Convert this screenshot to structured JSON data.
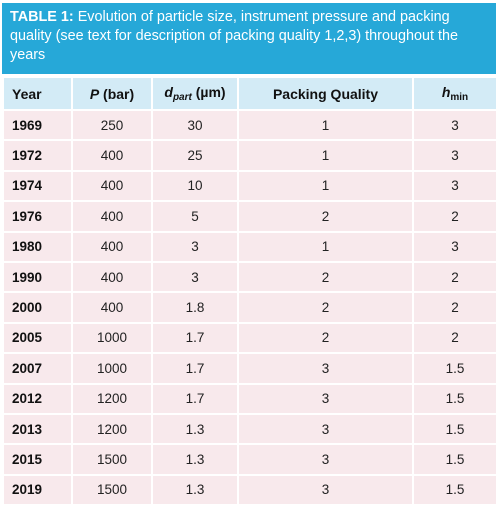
{
  "table": {
    "caption_lead": "TABLE 1:",
    "caption_text": "Evolution of particle size, instrument pressure and packing quality (see text for description of packing quality 1,2,3) throughout the years",
    "headers": {
      "year": "Year",
      "p_symbol": "P",
      "p_unit": "(bar)",
      "d_symbol": "d",
      "d_sub": "part",
      "d_unit": "(µm)",
      "packing": "Packing Quality",
      "h_symbol": "h",
      "h_sub": "min"
    },
    "rows": [
      [
        "1969",
        "250",
        "30",
        "1",
        "3"
      ],
      [
        "1972",
        "400",
        "25",
        "1",
        "3"
      ],
      [
        "1974",
        "400",
        "10",
        "1",
        "3"
      ],
      [
        "1976",
        "400",
        "5",
        "2",
        "2"
      ],
      [
        "1980",
        "400",
        "3",
        "1",
        "3"
      ],
      [
        "1990",
        "400",
        "3",
        "2",
        "2"
      ],
      [
        "2000",
        "400",
        "1.8",
        "2",
        "2"
      ],
      [
        "2005",
        "1000",
        "1.7",
        "2",
        "2"
      ],
      [
        "2007",
        "1000",
        "1.7",
        "3",
        "1.5"
      ],
      [
        "2012",
        "1200",
        "1.7",
        "3",
        "1.5"
      ],
      [
        "2013",
        "1200",
        "1.3",
        "3",
        "1.5"
      ],
      [
        "2015",
        "1500",
        "1.3",
        "3",
        "1.5"
      ],
      [
        "2019",
        "1500",
        "1.3",
        "3",
        "1.5"
      ]
    ]
  },
  "colors": {
    "caption_bg": "#26a8d8",
    "header_bg": "#d3ebf6",
    "row_bg": "#f8e9ec"
  }
}
